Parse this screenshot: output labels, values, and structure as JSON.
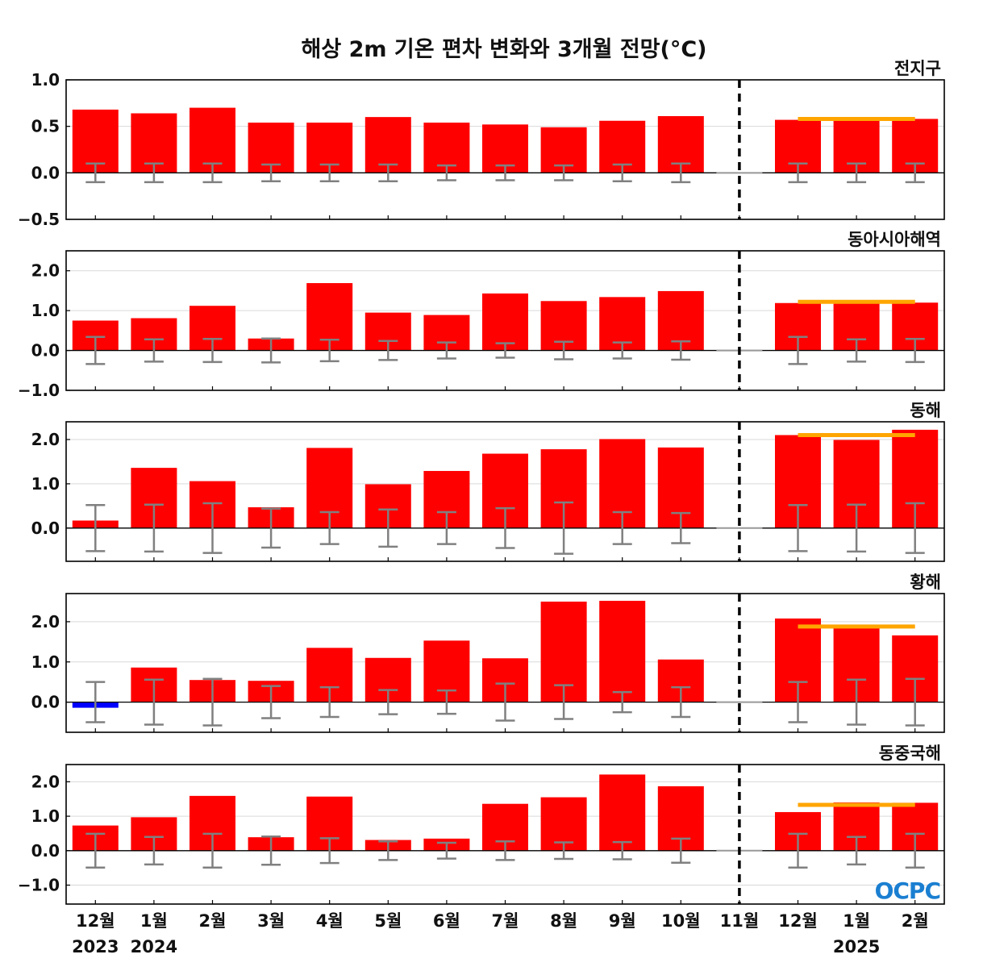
{
  "chart_data": {
    "type": "bar",
    "title": "해상 2m 기온 편차 변화와 3개월 전망(°C)",
    "categories": [
      "12월",
      "1월",
      "2월",
      "3월",
      "4월",
      "5월",
      "6월",
      "7월",
      "8월",
      "9월",
      "10월",
      "11월",
      "12월",
      "1월",
      "2월"
    ],
    "years": [
      {
        "label": "2023",
        "at_index": 0
      },
      {
        "label": "2024",
        "at_index": 1
      },
      {
        "label": "2025",
        "at_index": 13
      }
    ],
    "forecast_start_index": 12,
    "colors": {
      "positive": "#ff0000",
      "negative": "#0000ff",
      "errorbar": "#808080",
      "outlook": "#ffa500",
      "divider": "#000000"
    },
    "logo": "OCPC",
    "panels": [
      {
        "name": "전지구",
        "ylim": [
          -0.5,
          1.0
        ],
        "yticks": [
          -0.5,
          0.0,
          0.5,
          1.0
        ],
        "tick_labels": [
          "−0.5",
          "0.0",
          "0.5",
          "1.0"
        ],
        "values": [
          0.68,
          0.64,
          0.7,
          0.54,
          0.54,
          0.6,
          0.54,
          0.52,
          0.49,
          0.56,
          0.61,
          0.0,
          0.57,
          0.58,
          0.58
        ],
        "errors": [
          0.1,
          0.1,
          0.1,
          0.09,
          0.09,
          0.09,
          0.08,
          0.08,
          0.08,
          0.09,
          0.1,
          null,
          0.1,
          0.1,
          0.1
        ],
        "outlook": 0.58
      },
      {
        "name": "동아시아해역",
        "ylim": [
          -1.0,
          2.5
        ],
        "yticks": [
          -1.0,
          0.0,
          1.0,
          2.0
        ],
        "tick_labels": [
          "−1.0",
          "0.0",
          "1.0",
          "2.0"
        ],
        "values": [
          0.75,
          0.81,
          1.12,
          0.3,
          1.69,
          0.95,
          0.89,
          1.43,
          1.24,
          1.34,
          1.49,
          0.0,
          1.19,
          1.19,
          1.2
        ],
        "errors": [
          0.34,
          0.28,
          0.29,
          0.3,
          0.27,
          0.24,
          0.2,
          0.18,
          0.22,
          0.2,
          0.23,
          null,
          0.34,
          0.28,
          0.29
        ],
        "outlook": 1.22
      },
      {
        "name": "동해",
        "ylim": [
          -0.75,
          2.4
        ],
        "yticks": [
          0.0,
          1.0,
          2.0
        ],
        "tick_labels": [
          "0.0",
          "1.0",
          "2.0"
        ],
        "values": [
          0.17,
          1.36,
          1.06,
          0.47,
          1.81,
          0.99,
          1.29,
          1.68,
          1.78,
          2.01,
          1.82,
          0.0,
          2.1,
          1.99,
          2.22
        ],
        "errors": [
          0.52,
          0.53,
          0.56,
          0.44,
          0.36,
          0.42,
          0.36,
          0.45,
          0.58,
          0.36,
          0.34,
          null,
          0.52,
          0.53,
          0.56
        ],
        "outlook": 2.1
      },
      {
        "name": "황해",
        "ylim": [
          -0.75,
          2.7
        ],
        "yticks": [
          0.0,
          1.0,
          2.0
        ],
        "tick_labels": [
          "0.0",
          "1.0",
          "2.0"
        ],
        "values": [
          -0.14,
          0.86,
          0.55,
          0.53,
          1.35,
          1.1,
          1.53,
          1.09,
          2.5,
          2.52,
          1.06,
          0.0,
          2.08,
          1.87,
          1.66
        ],
        "errors": [
          0.5,
          0.56,
          0.58,
          0.4,
          0.37,
          0.3,
          0.29,
          0.46,
          0.42,
          0.25,
          0.37,
          null,
          0.5,
          0.56,
          0.58
        ],
        "outlook": 1.88
      },
      {
        "name": "동중국해",
        "ylim": [
          -1.55,
          2.5
        ],
        "yticks": [
          -1.0,
          0.0,
          1.0,
          2.0
        ],
        "tick_labels": [
          "−1.0",
          "0.0",
          "1.0",
          "2.0"
        ],
        "values": [
          0.73,
          0.97,
          1.59,
          0.39,
          1.57,
          0.31,
          0.35,
          1.36,
          1.55,
          2.21,
          1.87,
          0.0,
          1.12,
          1.4,
          1.39
        ],
        "errors": [
          0.49,
          0.4,
          0.49,
          0.41,
          0.36,
          0.27,
          0.23,
          0.27,
          0.24,
          0.25,
          0.35,
          null,
          0.49,
          0.4,
          0.49
        ],
        "outlook": 1.33
      }
    ]
  }
}
